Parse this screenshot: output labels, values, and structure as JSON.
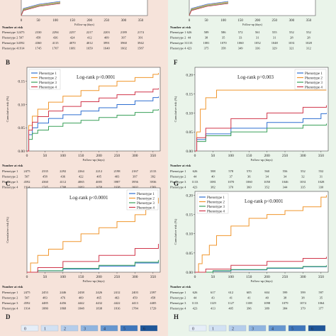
{
  "colors": {
    "left_bg": "#f6e3da",
    "right_bg": "#eaf4ea",
    "blue": "#2f6fd0",
    "orange": "#f0962d",
    "green": "#3aa05a",
    "red": "#d0364a",
    "scale": [
      "#e6eef8",
      "#d2e1f3",
      "#b5cdeb",
      "#8fb4df",
      "#6696cf",
      "#3f76bb",
      "#1f5698"
    ]
  },
  "common": {
    "number_at_risk": "Number at risk",
    "xlabel": "Follow-up (days)",
    "ylabel": "Cumulative risk (%)",
    "phenotypes": [
      "Phenotype 1",
      "Phenotype 2",
      "Phenotype 3",
      "Phenotype 4"
    ],
    "x_ticks": [
      "0",
      "50",
      "100",
      "150",
      "200",
      "250",
      "300",
      "350"
    ]
  },
  "panel_top_left": {
    "risk_rows": [
      [
        "2475",
        "2330",
        "2294",
        "2257",
        "2217",
        "2203",
        "2189",
        "2174"
      ],
      [
        "507",
        "458",
        "436",
        "424",
        "412",
        "409",
        "397",
        "391"
      ],
      [
        "4592",
        "4360",
        "4115",
        "4070",
        "4012",
        "3991",
        "3960",
        "3942"
      ],
      [
        "1914",
        "1745",
        "1707",
        "1681",
        "1659",
        "1640",
        "1602",
        "1587"
      ]
    ]
  },
  "panel_top_right": {
    "risk_rows": [
      [
        "626",
        "589",
        "586",
        "572",
        "561",
        "555",
        "552",
        "552"
      ],
      [
        "44",
        "38",
        "35",
        "33",
        "31",
        "31",
        "28",
        "28"
      ],
      [
        "1133",
        "1081",
        "1070",
        "1060",
        "1052",
        "1048",
        "1031",
        "1028"
      ],
      [
        "423",
        "375",
        "358",
        "349",
        "336",
        "329",
        "321",
        "312"
      ]
    ]
  },
  "chart_data": [
    {
      "panel": "B",
      "type": "line",
      "annotation": "Log-rank p<0.0001",
      "xlabel": "Follow-up (days)",
      "ylabel": "Cumulative risk (%)",
      "xlim": [
        0,
        370
      ],
      "ylim": [
        0,
        0.18
      ],
      "y_ticks": [
        "0.00",
        "0.05",
        "0.10",
        "0.15"
      ],
      "x_ticks": [
        "0",
        "50",
        "100",
        "150",
        "200",
        "250",
        "300",
        "350"
      ],
      "legend": "top-left",
      "series": [
        {
          "name": "Phenotype 1",
          "color": "#2f6fd0",
          "x": [
            0,
            5,
            15,
            30,
            60,
            100,
            150,
            200,
            250,
            300,
            350,
            365
          ],
          "y": [
            0,
            0.035,
            0.05,
            0.06,
            0.07,
            0.078,
            0.086,
            0.093,
            0.1,
            0.108,
            0.115,
            0.117
          ]
        },
        {
          "name": "Phenotype 2",
          "color": "#f0962d",
          "x": [
            0,
            5,
            15,
            30,
            60,
            100,
            150,
            200,
            250,
            300,
            350,
            365
          ],
          "y": [
            0,
            0.055,
            0.075,
            0.09,
            0.105,
            0.118,
            0.13,
            0.14,
            0.15,
            0.158,
            0.165,
            0.168
          ]
        },
        {
          "name": "Phenotype 3",
          "color": "#3aa05a",
          "x": [
            0,
            5,
            15,
            30,
            60,
            100,
            150,
            200,
            250,
            300,
            350,
            365
          ],
          "y": [
            0,
            0.025,
            0.038,
            0.045,
            0.053,
            0.06,
            0.066,
            0.072,
            0.077,
            0.083,
            0.088,
            0.09
          ]
        },
        {
          "name": "Phenotype 4",
          "color": "#d0364a",
          "x": [
            0,
            5,
            15,
            30,
            60,
            100,
            150,
            200,
            250,
            300,
            350,
            365
          ],
          "y": [
            0,
            0.045,
            0.062,
            0.074,
            0.086,
            0.096,
            0.106,
            0.114,
            0.121,
            0.127,
            0.133,
            0.135
          ]
        }
      ],
      "risk_rows": [
        [
          "2475",
          "2335",
          "2292",
          "2264",
          "2212",
          "2198",
          "2167",
          "2133"
        ],
        [
          "507",
          "458",
          "436",
          "422",
          "405",
          "403",
          "397",
          "392"
        ],
        [
          "4592",
          "4360",
          "4112",
          "4065",
          "4005",
          "3987",
          "3956",
          "3936"
        ],
        [
          "1914",
          "1745",
          "1708",
          "1683",
          "1658",
          "1638",
          "1602",
          "1583"
        ]
      ]
    },
    {
      "panel": "C",
      "type": "line",
      "annotation": "Log-rank p<0.0001",
      "xlabel": "Follow-up (days)",
      "ylabel": "Cumulative risk (%)",
      "xlim": [
        0,
        370
      ],
      "ylim": [
        0,
        0.11
      ],
      "y_ticks": [],
      "x_ticks": [
        "0",
        "50",
        "100",
        "150",
        "200",
        "250",
        "300",
        "350"
      ],
      "legend": "top-right",
      "series": [
        {
          "name": "Phenotype 1",
          "color": "#2f6fd0",
          "x": [
            0,
            30,
            100,
            200,
            300,
            365
          ],
          "y": [
            0,
            0.002,
            0.004,
            0.008,
            0.012,
            0.015
          ]
        },
        {
          "name": "Phenotype 2",
          "color": "#f0962d",
          "x": [
            0,
            10,
            30,
            60,
            100,
            150,
            200,
            250,
            300,
            330,
            350,
            365
          ],
          "y": [
            0,
            0.012,
            0.022,
            0.03,
            0.04,
            0.05,
            0.058,
            0.066,
            0.075,
            0.082,
            0.09,
            0.097
          ]
        },
        {
          "name": "Phenotype 3",
          "color": "#3aa05a",
          "x": [
            0,
            30,
            100,
            200,
            300,
            365
          ],
          "y": [
            0,
            0.002,
            0.005,
            0.009,
            0.013,
            0.016
          ]
        },
        {
          "name": "Phenotype 4",
          "color": "#d0364a",
          "x": [
            0,
            30,
            100,
            200,
            300,
            365
          ],
          "y": [
            0,
            0.006,
            0.014,
            0.022,
            0.031,
            0.037
          ]
        }
      ],
      "risk_rows": [
        [
          "2475",
          "2453",
          "2446",
          "2438",
          "2426",
          "2412",
          "2403",
          "2397"
        ],
        [
          "507",
          "483",
          "476",
          "469",
          "465",
          "463",
          "459",
          "458"
        ],
        [
          "4592",
          "4485",
          "4456",
          "4442",
          "4432",
          "4422",
          "4413",
          "4405"
        ],
        [
          "1914",
          "1880",
          "1868",
          "1848",
          "1838",
          "1816",
          "1784",
          "1729"
        ]
      ]
    },
    {
      "panel": "F",
      "type": "line",
      "annotation": "Log-rank p=0.003",
      "xlabel": "Follow-up (days)",
      "ylabel": "Cumulative risk (%)",
      "xlim": [
        0,
        370
      ],
      "ylim": [
        0,
        0.22
      ],
      "y_ticks": [
        "0.00",
        "0.05",
        "0.10",
        "0.15",
        "0.20"
      ],
      "x_ticks": [
        "0",
        "50",
        "100",
        "150",
        "200",
        "250",
        "300",
        "350"
      ],
      "legend": "top-right",
      "series": [
        {
          "name": "Phenotype 1",
          "color": "#2f6fd0",
          "x": [
            0,
            5,
            30,
            100,
            200,
            300,
            350,
            365
          ],
          "y": [
            0,
            0.03,
            0.045,
            0.06,
            0.075,
            0.085,
            0.098,
            0.1
          ]
        },
        {
          "name": "Phenotype 2",
          "color": "#f0962d",
          "x": [
            0,
            5,
            15,
            30,
            60,
            100,
            200,
            300,
            365
          ],
          "y": [
            0,
            0.05,
            0.11,
            0.14,
            0.16,
            0.16,
            0.16,
            0.16,
            0.16
          ]
        },
        {
          "name": "Phenotype 3",
          "color": "#3aa05a",
          "x": [
            0,
            5,
            30,
            100,
            200,
            300,
            365
          ],
          "y": [
            0,
            0.025,
            0.04,
            0.05,
            0.06,
            0.068,
            0.072
          ]
        },
        {
          "name": "Phenotype 4",
          "color": "#d0364a",
          "x": [
            0,
            5,
            30,
            100,
            200,
            300,
            365
          ],
          "y": [
            0,
            0.035,
            0.06,
            0.085,
            0.1,
            0.115,
            0.12
          ]
        }
      ],
      "risk_rows": [
        [
          "626",
          "588",
          "578",
          "570",
          "560",
          "556",
          "552",
          "552"
        ],
        [
          "44",
          "40",
          "37",
          "36",
          "34",
          "34",
          "32",
          "31"
        ],
        [
          "1133",
          "1081",
          "1070",
          "1060",
          "1050",
          "1046",
          "1031",
          "1028"
        ],
        [
          "423",
          "382",
          "370",
          "360",
          "352",
          "344",
          "335",
          "330"
        ]
      ]
    },
    {
      "panel": "G",
      "type": "line",
      "annotation": "Log-rank p<0.0001",
      "xlabel": "Follow-up (days)",
      "ylabel": "Cumulative risk (%)",
      "xlim": [
        0,
        370
      ],
      "ylim": [
        0,
        0.21
      ],
      "y_ticks": [
        "0.00",
        "0.05",
        "0.10",
        "0.15",
        "0.20"
      ],
      "x_ticks": [
        "0",
        "50",
        "100",
        "150",
        "200",
        "250",
        "300",
        "350"
      ],
      "legend": "top-left",
      "series": [
        {
          "name": "Phenotype 1",
          "color": "#2f6fd0",
          "x": [
            0,
            50,
            100,
            200,
            300,
            365
          ],
          "y": [
            0,
            0.003,
            0.006,
            0.01,
            0.014,
            0.017
          ]
        },
        {
          "name": "Phenotype 2",
          "color": "#f0962d",
          "x": [
            0,
            10,
            20,
            40,
            60,
            100,
            150,
            200,
            250,
            300,
            350,
            365
          ],
          "y": [
            0,
            0.022,
            0.045,
            0.07,
            0.095,
            0.12,
            0.14,
            0.15,
            0.16,
            0.17,
            0.195,
            0.2
          ]
        },
        {
          "name": "Phenotype 3",
          "color": "#3aa05a",
          "x": [
            0,
            50,
            100,
            200,
            300,
            365
          ],
          "y": [
            0,
            0.004,
            0.007,
            0.011,
            0.015,
            0.018
          ]
        },
        {
          "name": "Phenotype 4",
          "color": "#d0364a",
          "x": [
            0,
            30,
            100,
            200,
            300,
            365
          ],
          "y": [
            0,
            0.008,
            0.018,
            0.028,
            0.036,
            0.04
          ]
        }
      ],
      "risk_rows": [
        [
          "626",
          "617",
          "612",
          "605",
          "604",
          "599",
          "599",
          "597"
        ],
        [
          "44",
          "43",
          "41",
          "41",
          "40",
          "38",
          "38",
          "35"
        ],
        [
          "1133",
          "1129",
          "1127",
          "1108",
          "1098",
          "1079",
          "1074",
          "1064"
        ],
        [
          "423",
          "413",
          "405",
          "396",
          "389",
          "384",
          "379",
          "377"
        ]
      ]
    }
  ],
  "bottom_left": {
    "panel": "D",
    "scale_labels": [
      "0",
      "1",
      "2",
      "3",
      "4",
      "5",
      "6"
    ]
  },
  "bottom_right": {
    "panel": "H",
    "scale_labels": [
      "0",
      "1",
      "2",
      "3",
      "4",
      "5",
      "6"
    ]
  }
}
